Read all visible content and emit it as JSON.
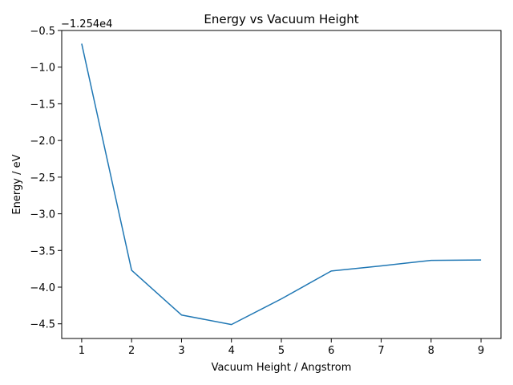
{
  "chart_data": {
    "type": "line",
    "title": "Energy vs Vacuum Height",
    "xlabel": "Vacuum Height / Angstrom",
    "ylabel": "Energy / eV",
    "y_offset_label": "−1.254e4",
    "xlim": [
      0.6,
      9.4
    ],
    "ylim": [
      -4.7,
      -0.5
    ],
    "xticks": [
      1,
      2,
      3,
      4,
      5,
      6,
      7,
      8,
      9
    ],
    "xtick_labels": [
      "1",
      "2",
      "3",
      "4",
      "5",
      "6",
      "7",
      "8",
      "9"
    ],
    "yticks": [
      -0.5,
      -1.0,
      -1.5,
      -2.0,
      -2.5,
      -3.0,
      -3.5,
      -4.0,
      -4.5
    ],
    "ytick_labels": [
      "−0.5",
      "−1.0",
      "−1.5",
      "−2.0",
      "−2.5",
      "−3.0",
      "−3.5",
      "−4.0",
      "−4.5"
    ],
    "grid": false,
    "series": [
      {
        "color": "#1f77b4",
        "x": [
          1,
          2,
          3,
          4,
          5,
          6,
          7,
          8,
          9
        ],
        "y": [
          -0.68,
          -3.77,
          -4.38,
          -4.51,
          -4.16,
          -3.78,
          -3.71,
          -3.635,
          -3.63
        ]
      }
    ]
  }
}
